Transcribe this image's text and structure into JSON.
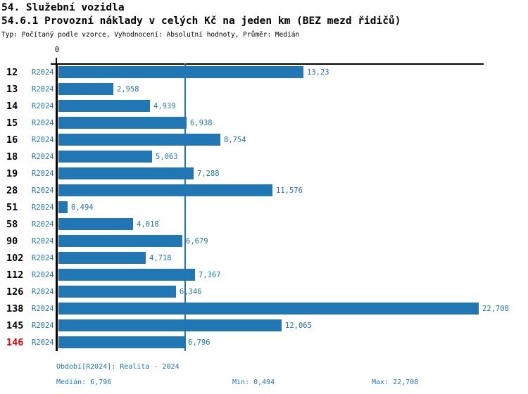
{
  "header": {
    "title": "54. Služební vozidla",
    "subtitle": "54.6.1 Provozní náklady v celých Kč na jeden km (BEZ mezd řidičů)",
    "meta_line": "Typ: Počítaný podle vzorce, Vyhodnocení: Absolutní hodnoty, Průměr: Medián"
  },
  "colors": {
    "bar": "#2077b4",
    "blue_text": "#2077b4",
    "axis": "#000000",
    "highlight": "#ee0000"
  },
  "chart_data": {
    "type": "bar",
    "orientation": "horizontal",
    "title": "54.6.1 Provozní náklady v celých Kč na jeden km (BEZ mezd řidičů)",
    "series_label": "R2024",
    "categories": [
      "12",
      "13",
      "14",
      "15",
      "16",
      "18",
      "19",
      "28",
      "51",
      "58",
      "90",
      "102",
      "112",
      "126",
      "138",
      "145",
      "146"
    ],
    "values": [
      13.23,
      2.958,
      4.939,
      6.938,
      8.754,
      5.063,
      7.288,
      11.576,
      0.494,
      4.018,
      6.679,
      4.718,
      7.367,
      6.346,
      22.708,
      12.065,
      6.796
    ],
    "value_labels": [
      "13,23",
      "2,958",
      "4,939",
      "6,938",
      "8,754",
      "5,063",
      "7,288",
      "11,576",
      "0,494",
      "4,018",
      "6,679",
      "4,718",
      "7,367",
      "6,346",
      "22,708",
      "12,065",
      "6,796"
    ],
    "highlighted_category": "146",
    "xlim": [
      0,
      22.708
    ],
    "x_tick_labels": [
      "0"
    ],
    "median_line_value": 6.796,
    "grid": false,
    "legend_position": "none"
  },
  "footer": {
    "period_label": "Období[R2024]: Realita - 2024",
    "median_label": "Medián: 6,796",
    "min_label": "Min: 0,494",
    "max_label": "Max: 22,708"
  }
}
